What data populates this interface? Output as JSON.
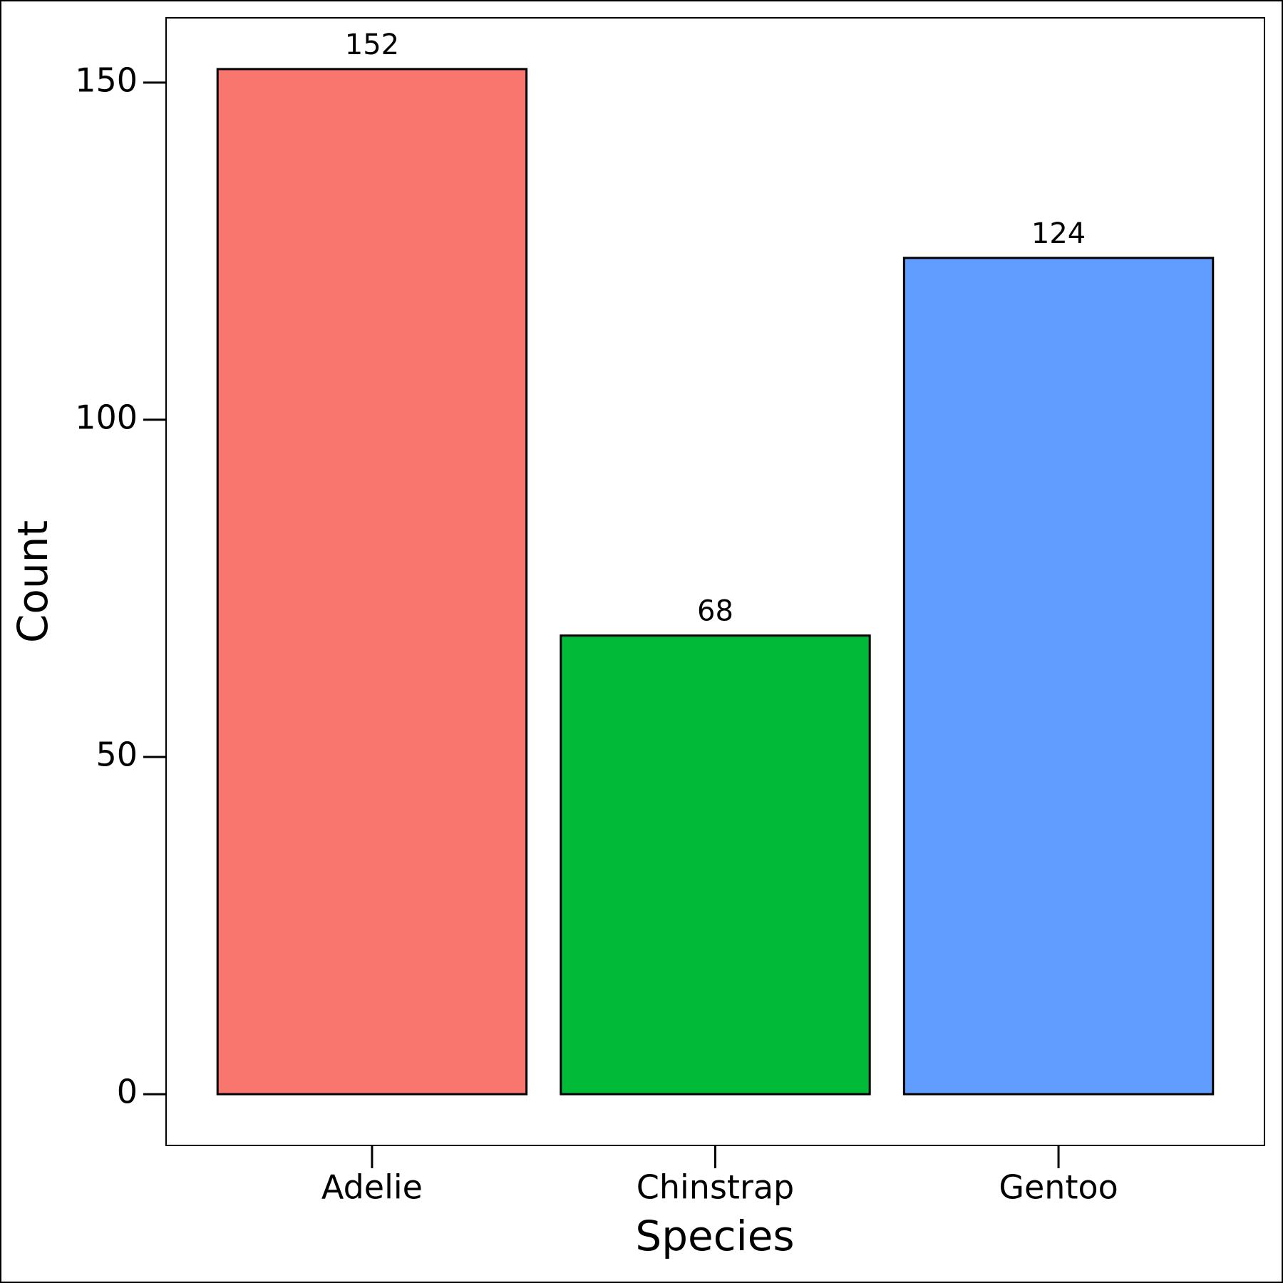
{
  "chart_data": {
    "type": "bar",
    "x_label": "Species",
    "y_label": "Count",
    "categories": [
      "Adelie",
      "Chinstrap",
      "Gentoo"
    ],
    "values": [
      152,
      68,
      124
    ],
    "colors": [
      "#F8766D",
      "#00BA38",
      "#619CFF"
    ],
    "ylim": [
      -7.6,
      159.6
    ],
    "yticks": [
      0,
      50,
      100,
      150
    ]
  }
}
